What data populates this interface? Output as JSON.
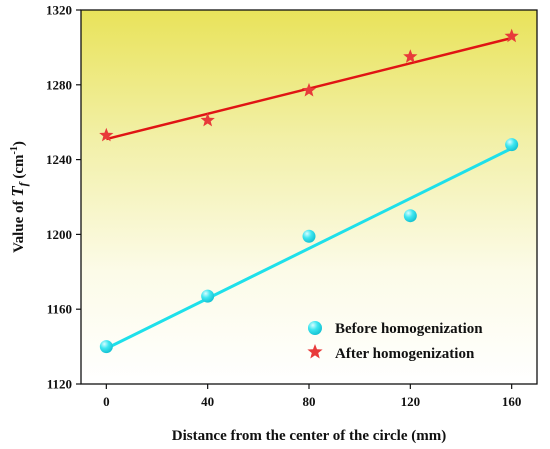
{
  "chart_data": {
    "type": "scatter",
    "title": "",
    "xlabel": "Distance from the center of the circle (mm)",
    "ylabel": {
      "prefix": "Value of ",
      "symbol": "T",
      "subscript": "f",
      "unit_open": " (cm",
      "unit_sup": "-1",
      "unit_close": ")"
    },
    "xlim": [
      -10,
      170
    ],
    "ylim": [
      1120,
      1320
    ],
    "x_ticks": [
      0,
      40,
      80,
      120,
      160
    ],
    "y_ticks": [
      1120,
      1160,
      1200,
      1240,
      1280,
      1320
    ],
    "grid": false,
    "background": "yellow-to-white vertical gradient",
    "legend_position": "bottom-right",
    "series": [
      {
        "name": "Before homogenization",
        "marker": "circle",
        "color": "#1ee0ea",
        "x": [
          0,
          40,
          80,
          120,
          160
        ],
        "y": [
          1140,
          1167,
          1199,
          1210,
          1248
        ],
        "fit_line": {
          "x": [
            0,
            160
          ],
          "y": [
            1139,
            1246
          ]
        }
      },
      {
        "name": "After homogenization",
        "marker": "star",
        "color": "#e83a3a",
        "line_color": "#e01414",
        "x": [
          0,
          40,
          80,
          120,
          160
        ],
        "y": [
          1253,
          1261,
          1277,
          1295,
          1306
        ],
        "fit_line": {
          "x": [
            0,
            160
          ],
          "y": [
            1251,
            1305
          ]
        }
      }
    ]
  }
}
